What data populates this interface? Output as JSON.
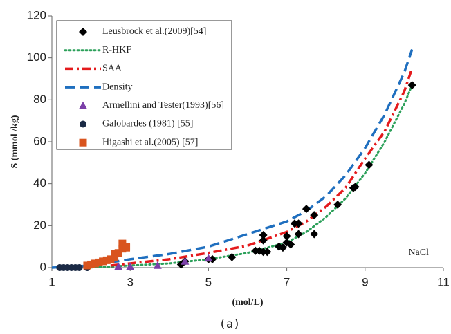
{
  "chart_data": {
    "type": "line",
    "xlabel": "(mol/L)",
    "ylabel": "S (mmol /kg)",
    "annotation": "NaCl",
    "caption": "(a)",
    "xlim": [
      1,
      11
    ],
    "xticks": [
      1,
      3,
      5,
      7,
      9,
      11
    ],
    "ylim": [
      0,
      120
    ],
    "yticks": [
      0,
      20,
      40,
      60,
      80,
      100,
      120
    ],
    "legend": "upper left",
    "series": [
      {
        "name": "Leusbrock et al.(2009)[54]",
        "color": "#000000",
        "marker": "diamond",
        "x": [
          4.3,
          4.4,
          5.0,
          5.1,
          5.6,
          6.2,
          6.3,
          6.4,
          6.4,
          6.4,
          6.5,
          6.8,
          6.9,
          7.0,
          7.0,
          7.1,
          7.2,
          7.3,
          7.3,
          7.5,
          7.7,
          7.7,
          8.3,
          8.7,
          8.75,
          9.1,
          10.2
        ],
        "values": [
          1.5,
          3,
          4,
          4,
          5,
          8,
          8,
          7.5,
          13,
          15.5,
          7.5,
          10,
          9.5,
          12,
          15,
          11,
          21,
          21,
          16,
          28,
          16,
          25,
          30,
          38,
          38.5,
          49,
          87
        ]
      },
      {
        "name": "R-HKF",
        "color": "#2ca05a",
        "dash": "dotted",
        "x": [
          1.9,
          3,
          4,
          5,
          6,
          7,
          7.5,
          8,
          8.5,
          9,
          9.5,
          10,
          10.2
        ],
        "values": [
          0,
          1,
          2,
          4,
          7,
          12,
          17,
          24,
          33,
          45,
          60,
          78,
          87
        ]
      },
      {
        "name": "SAA",
        "color": "#e41a1c",
        "dash": "dash-dot",
        "x": [
          2.5,
          3,
          4,
          5,
          6,
          7,
          7.5,
          8,
          8.5,
          9,
          9.5,
          10,
          10.2
        ],
        "values": [
          1,
          2,
          4,
          7,
          10.5,
          17,
          22,
          29,
          38,
          52,
          65,
          84,
          95
        ]
      },
      {
        "name": "Density",
        "color": "#1f6fbf",
        "dash": "dashed",
        "x": [
          1,
          2,
          3,
          4,
          5,
          6,
          7,
          7.5,
          8,
          8.5,
          9,
          9.5,
          10,
          10.2
        ],
        "values": [
          0,
          1,
          4,
          6.5,
          10,
          16,
          22,
          27,
          34,
          44,
          57,
          73,
          93,
          104
        ]
      },
      {
        "name": "Armellini and Tester(1993)[56]",
        "color": "#7b3fa8",
        "marker": "triangle",
        "x": [
          2.7,
          3.0,
          3.7,
          4.4,
          5.0
        ],
        "values": [
          0.5,
          0.5,
          1,
          3,
          4.5
        ]
      },
      {
        "name": "Galobardes (1981) [55]",
        "color": "#1b2a45",
        "marker": "circle",
        "x": [
          1.2,
          1.3,
          1.4,
          1.5,
          1.6,
          1.7,
          1.9
        ],
        "values": [
          0,
          0,
          0,
          0,
          0,
          0,
          0
        ]
      },
      {
        "name": "Higashi et al.(2005) [57]",
        "color": "#d9541e",
        "marker": "square",
        "x": [
          1.9,
          2.0,
          2.1,
          2.2,
          2.3,
          2.4,
          2.5,
          2.6,
          2.6,
          2.7,
          2.8,
          2.8,
          2.9,
          2.9
        ],
        "values": [
          1,
          1.5,
          2,
          2.5,
          3,
          3.5,
          4,
          5,
          6.5,
          7,
          9,
          11.5,
          10,
          9.5
        ]
      }
    ]
  }
}
